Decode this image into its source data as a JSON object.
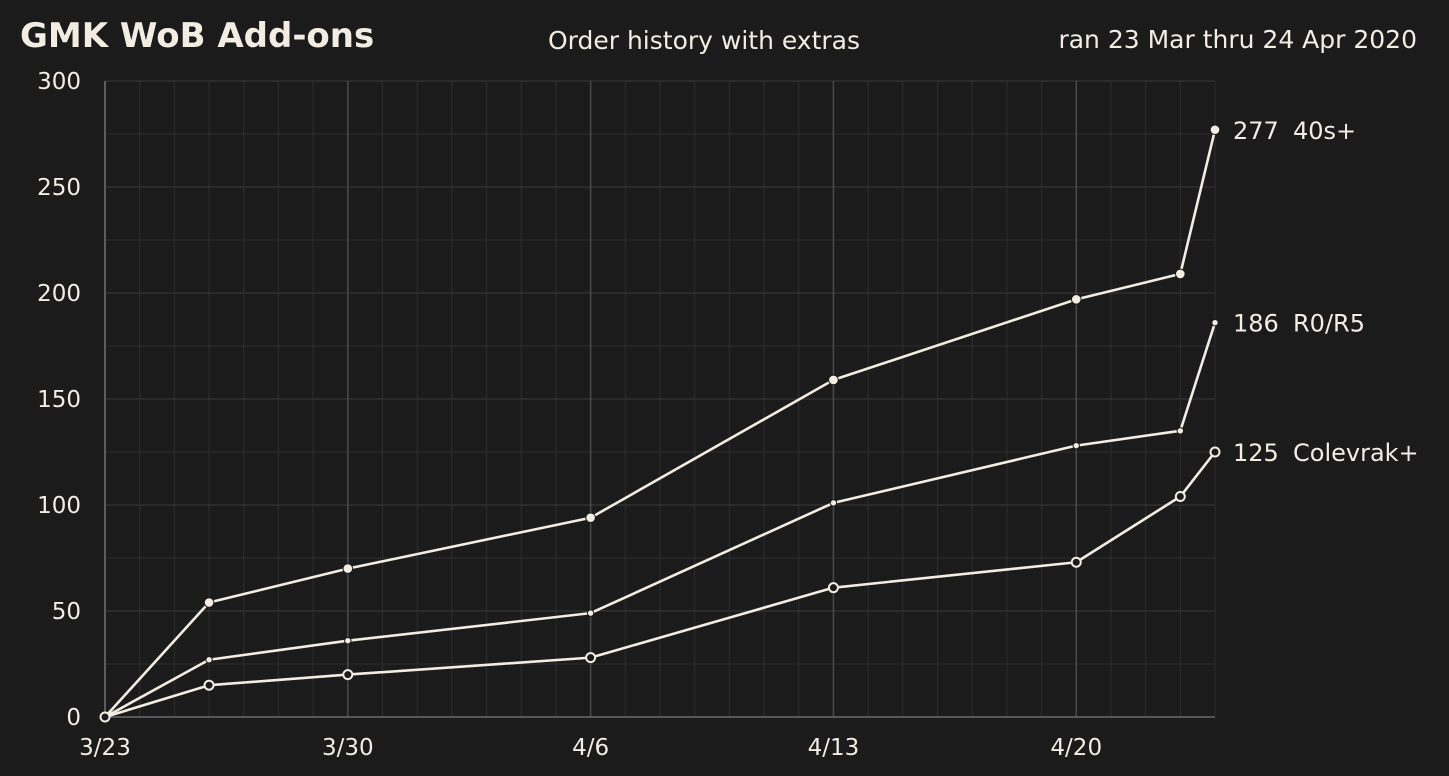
{
  "chart_data": {
    "type": "line",
    "title": "GMK WoB Add-ons",
    "subtitle": "Order history with extras",
    "date_range": "ran 23 Mar thru 24 Apr 2020",
    "xlabel": "",
    "ylabel": "",
    "x_range": [
      "2020-03-23",
      "2020-04-24"
    ],
    "ylim": [
      0,
      300
    ],
    "y_ticks": [
      0,
      50,
      100,
      150,
      200,
      250,
      300
    ],
    "x_ticks": [
      {
        "date": "2020-03-23",
        "label": "3/23"
      },
      {
        "date": "2020-03-30",
        "label": "3/30"
      },
      {
        "date": "2020-04-06",
        "label": "4/6"
      },
      {
        "date": "2020-04-13",
        "label": "4/13"
      },
      {
        "date": "2020-04-20",
        "label": "4/20"
      }
    ],
    "grid": true,
    "legend": "direct labels at line ends",
    "line_color": "#f2ece3",
    "series": [
      {
        "name": "40s+",
        "end_label": "277",
        "marker": "filled-large",
        "x": [
          "2020-03-23",
          "2020-03-26",
          "2020-03-30",
          "2020-04-06",
          "2020-04-13",
          "2020-04-20",
          "2020-04-23",
          "2020-04-24"
        ],
        "y": [
          0,
          54,
          70,
          94,
          159,
          197,
          209,
          277
        ]
      },
      {
        "name": "R0/R5",
        "end_label": "186",
        "marker": "filled-small",
        "x": [
          "2020-03-23",
          "2020-03-26",
          "2020-03-30",
          "2020-04-06",
          "2020-04-13",
          "2020-04-20",
          "2020-04-23",
          "2020-04-24"
        ],
        "y": [
          0,
          27,
          36,
          49,
          101,
          128,
          135,
          186
        ]
      },
      {
        "name": "Colevrak+",
        "end_label": "125",
        "marker": "hollow",
        "x": [
          "2020-03-23",
          "2020-03-26",
          "2020-03-30",
          "2020-04-06",
          "2020-04-13",
          "2020-04-20",
          "2020-04-23",
          "2020-04-24"
        ],
        "y": [
          0,
          15,
          20,
          28,
          61,
          73,
          104,
          125
        ]
      }
    ]
  }
}
